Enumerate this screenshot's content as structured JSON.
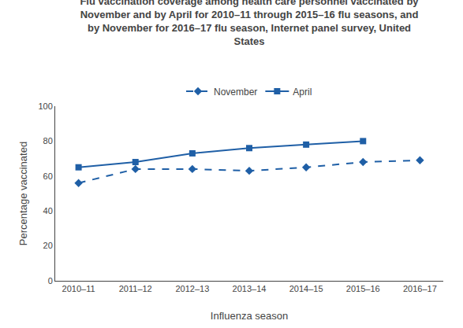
{
  "chart_data": {
    "type": "line",
    "title": "Flu vaccination coverage among health care personnel vaccinated by\nNovember and by April for 2010–11 through 2015–16 flu seasons, and\nby November for 2016–17 flu season, Internet panel survey, United\nStates",
    "xlabel": "Influenza season",
    "ylabel": "Percentage vaccinated",
    "categories": [
      "2010–11",
      "2011–12",
      "2012–13",
      "2013–14",
      "2014–15",
      "2015–16",
      "2016–17"
    ],
    "series": [
      {
        "name": "November",
        "color": "#1f5fa6",
        "marker": "diamond",
        "line_style": "dashed",
        "values": [
          56,
          64,
          64,
          63,
          65,
          68,
          69
        ]
      },
      {
        "name": "April",
        "color": "#1f5fa6",
        "marker": "square",
        "line_style": "solid",
        "values": [
          65,
          68,
          73,
          76,
          78,
          80,
          null
        ]
      }
    ],
    "ylim": [
      0,
      100
    ],
    "yticks": [
      0,
      20,
      40,
      60,
      80,
      100
    ],
    "grid": false,
    "legend": "top"
  }
}
